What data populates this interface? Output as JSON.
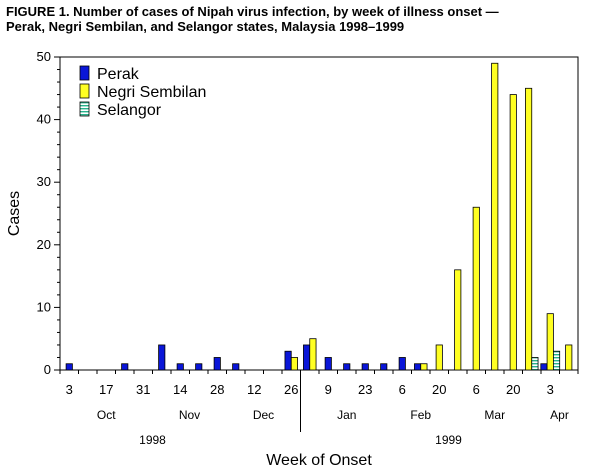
{
  "figure": {
    "title_line1": "FIGURE 1. Number of cases of Nipah virus infection, by week of illness onset —",
    "title_line2": "Perak, Negri Sembilan, and Selangor states, Malaysia 1998–1999"
  },
  "colors": {
    "perak": "#0a16d8",
    "negri_sembilan": "#ffff22",
    "selangor": "#27b38c",
    "background": "#ffffff",
    "axis": "#000000"
  },
  "chart_data": {
    "type": "bar",
    "title": "Number of cases of Nipah virus infection, by week of illness onset — Perak, Negri Sembilan, and Selangor states, Malaysia 1998–1999",
    "xlabel": "Week of Onset",
    "ylabel": "Cases",
    "ylim": [
      0,
      50
    ],
    "yticks": [
      0,
      10,
      20,
      30,
      40,
      50
    ],
    "legend_position": "top-left",
    "categories": [
      "3 Oct",
      "10 Oct",
      "17 Oct",
      "24 Oct",
      "31 Oct",
      "7 Nov",
      "14 Nov",
      "21 Nov",
      "28 Nov",
      "5 Dec",
      "12 Dec",
      "19 Dec",
      "26 Dec",
      "2 Jan",
      "9 Jan",
      "16 Jan",
      "23 Jan",
      "30 Jan",
      "6 Feb",
      "13 Feb",
      "20 Feb",
      "27 Feb",
      "6 Mar",
      "13 Mar",
      "20 Mar",
      "27 Mar",
      "3 Apr",
      "10 Apr"
    ],
    "x_tick_labels": [
      "3",
      "",
      "17",
      "",
      "31",
      "",
      "14",
      "",
      "28",
      "",
      "12",
      "",
      "26",
      "",
      "9",
      "",
      "23",
      "",
      "6",
      "",
      "20",
      "",
      "6",
      "",
      "20",
      "",
      "3",
      ""
    ],
    "month_labels": [
      "Oct",
      "Nov",
      "Dec",
      "Jan",
      "Feb",
      "Mar",
      "Apr"
    ],
    "year_labels": [
      "1998",
      "1999"
    ],
    "series": [
      {
        "name": "Perak",
        "values": [
          1,
          0,
          0,
          1,
          0,
          4,
          1,
          1,
          2,
          1,
          0,
          0,
          3,
          4,
          2,
          1,
          1,
          1,
          2,
          1,
          0,
          0,
          0,
          0,
          0,
          0,
          1,
          0
        ]
      },
      {
        "name": "Negri Sembilan",
        "values": [
          0,
          0,
          0,
          0,
          0,
          0,
          0,
          0,
          0,
          0,
          0,
          0,
          2,
          5,
          0,
          0,
          0,
          0,
          0,
          1,
          4,
          16,
          26,
          49,
          44,
          45,
          9,
          4
        ]
      },
      {
        "name": "Selangor",
        "values": [
          0,
          0,
          0,
          0,
          0,
          0,
          0,
          0,
          0,
          0,
          0,
          0,
          0,
          0,
          0,
          0,
          0,
          0,
          0,
          0,
          0,
          0,
          0,
          0,
          0,
          2,
          3,
          0
        ]
      }
    ]
  }
}
